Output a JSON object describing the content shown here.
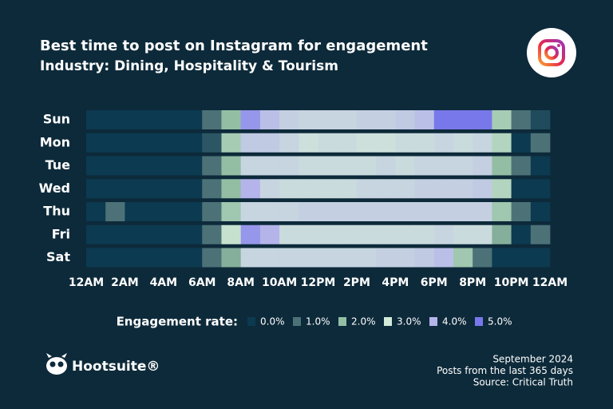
{
  "chart_data": {
    "type": "heatmap",
    "title": "Best time to post on Instagram for engagement",
    "subtitle": "Industry: Dining, Hospitality & Tourism",
    "categories": [
      "Sun",
      "Mon",
      "Tue",
      "Wed",
      "Thu",
      "Fri",
      "Sat"
    ],
    "x": [
      0,
      1,
      2,
      3,
      4,
      5,
      6,
      7,
      8,
      9,
      10,
      11,
      12,
      13,
      14,
      15,
      16,
      17,
      18,
      19,
      20,
      21,
      22,
      23
    ],
    "xlim": [
      0,
      24
    ],
    "xticks": [
      {
        "value": 0,
        "label": "12AM"
      },
      {
        "value": 2,
        "label": "2AM"
      },
      {
        "value": 4,
        "label": "4AM"
      },
      {
        "value": 6,
        "label": "6AM"
      },
      {
        "value": 8,
        "label": "8AM"
      },
      {
        "value": 10,
        "label": "10AM"
      },
      {
        "value": 12,
        "label": "12PM"
      },
      {
        "value": 14,
        "label": "2PM"
      },
      {
        "value": 16,
        "label": "4PM"
      },
      {
        "value": 18,
        "label": "6PM"
      },
      {
        "value": 20,
        "label": "8PM"
      },
      {
        "value": 22,
        "label": "10PM"
      },
      {
        "value": 24,
        "label": "12AM"
      }
    ],
    "values": [
      [
        0,
        0,
        0,
        0,
        0,
        0,
        1.0,
        2.0,
        4.5,
        3.8,
        3.5,
        3.4,
        3.4,
        3.4,
        3.5,
        3.5,
        3.6,
        3.8,
        5.0,
        5.0,
        5.0,
        2.3,
        1.0,
        0.3
      ],
      [
        0,
        0,
        0,
        0,
        0,
        0,
        0.5,
        2.3,
        3.6,
        3.6,
        3.4,
        3.2,
        3.3,
        3.3,
        3.2,
        3.2,
        3.3,
        3.3,
        3.4,
        3.3,
        3.4,
        2.5,
        0,
        1.0
      ],
      [
        0,
        0,
        0,
        0,
        0,
        0,
        1.0,
        2.0,
        3.4,
        3.4,
        3.4,
        3.3,
        3.3,
        3.3,
        3.3,
        3.4,
        3.3,
        3.4,
        3.4,
        3.4,
        3.5,
        2.0,
        1.0,
        0
      ],
      [
        0,
        0,
        0,
        0,
        0,
        0,
        1.0,
        2.0,
        4.0,
        3.4,
        3.3,
        3.3,
        3.3,
        3.3,
        3.4,
        3.4,
        3.4,
        3.5,
        3.5,
        3.5,
        3.6,
        2.5,
        0,
        0
      ],
      [
        0,
        1.0,
        0,
        0,
        0,
        0,
        1.0,
        2.2,
        3.4,
        3.4,
        3.4,
        3.5,
        3.5,
        3.5,
        3.5,
        3.5,
        3.5,
        3.5,
        3.5,
        3.5,
        3.5,
        2.2,
        1.0,
        0
      ],
      [
        0,
        0,
        0,
        0,
        0,
        0,
        1.0,
        2.8,
        4.5,
        4.0,
        3.3,
        3.3,
        3.3,
        3.3,
        3.3,
        3.3,
        3.3,
        3.3,
        3.4,
        3.3,
        3.3,
        1.8,
        0,
        1.0
      ],
      [
        0,
        0,
        0,
        0,
        0,
        0,
        1.0,
        1.8,
        3.4,
        3.4,
        3.4,
        3.4,
        3.4,
        3.4,
        3.4,
        3.5,
        3.5,
        3.6,
        3.8,
        2.2,
        1.0,
        0,
        0,
        0
      ]
    ],
    "colorbar": {
      "label": "Engagement rate:",
      "ticks": [
        {
          "value": 0,
          "label": "0.0%"
        },
        {
          "value": 1,
          "label": "1.0%"
        },
        {
          "value": 2,
          "label": "2.0%"
        },
        {
          "value": 3,
          "label": "3.0%"
        },
        {
          "value": 4,
          "label": "4.0%"
        },
        {
          "value": 5,
          "label": "5.0%"
        }
      ],
      "colors": [
        "#0c3a50",
        "#4c7278",
        "#93bea4",
        "#d3ebd9",
        "#b4b4ea",
        "#7878ea"
      ]
    }
  },
  "brand": "Hootsuite®",
  "notes": [
    "September 2024",
    "Posts from the last 365 days",
    "Source: Critical Truth"
  ]
}
